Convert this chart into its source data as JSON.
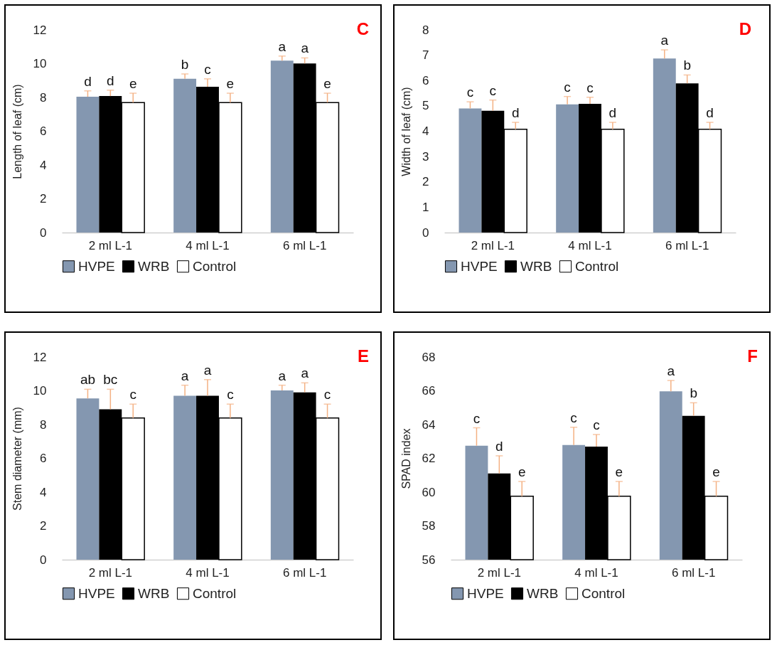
{
  "chart_data": [
    {
      "type": "bar",
      "ylabel": "Length of leaf (cm)",
      "categories": [
        "2 ml L-1",
        "4 ml L-1",
        "6 ml L-1"
      ],
      "ylim": [
        0,
        12
      ],
      "yticks": [
        0,
        2,
        4,
        6,
        8,
        10,
        12
      ],
      "legend": "bottom",
      "annotations": [
        "C"
      ],
      "series": [
        {
          "name": "HVPE",
          "color": "#8497b0",
          "values": [
            8.04,
            9.11,
            10.18
          ],
          "errors": [
            [
              8.04,
              8.39
            ],
            [
              9.11,
              9.39
            ],
            [
              10.18,
              10.45
            ]
          ],
          "value_labels": [
            "d",
            "b",
            "a"
          ]
        },
        {
          "name": "WRB",
          "color": "#000000",
          "values": [
            8.08,
            8.63,
            10.01
          ],
          "errors": [
            [
              8.08,
              8.43
            ],
            [
              8.63,
              9.1
            ],
            [
              10.01,
              10.34
            ]
          ],
          "value_labels": [
            "d",
            "c",
            "a"
          ]
        },
        {
          "name": "Control",
          "color": "#ffffff",
          "values": [
            7.7,
            7.7,
            7.7
          ],
          "errors": [
            [
              7.7,
              8.25
            ],
            [
              7.7,
              8.25
            ],
            [
              7.7,
              8.25
            ]
          ],
          "value_labels": [
            "e",
            "e",
            "e"
          ]
        }
      ]
    },
    {
      "type": "bar",
      "ylabel": "Width of leaf (cm)",
      "categories": [
        "2 ml L-1",
        "4 ml L-1",
        "6 ml L-1"
      ],
      "ylim": [
        0,
        8
      ],
      "yticks": [
        0,
        1,
        2,
        3,
        4,
        5,
        6,
        7,
        8
      ],
      "legend": "bottom",
      "annotations": [
        "D"
      ],
      "series": [
        {
          "name": "HVPE",
          "color": "#8497b0",
          "values": [
            4.9,
            5.06,
            6.87
          ],
          "errors": [
            [
              4.9,
              5.16
            ],
            [
              5.06,
              5.37
            ],
            [
              6.87,
              7.21
            ]
          ],
          "value_labels": [
            "c",
            "c",
            "a"
          ]
        },
        {
          "name": "WRB",
          "color": "#000000",
          "values": [
            4.81,
            5.08,
            5.89
          ],
          "errors": [
            [
              4.81,
              5.23
            ],
            [
              5.08,
              5.34
            ],
            [
              5.89,
              6.22
            ]
          ],
          "value_labels": [
            "c",
            "c",
            "b"
          ]
        },
        {
          "name": "Control",
          "color": "#ffffff",
          "values": [
            4.08,
            4.08,
            4.08
          ],
          "errors": [
            [
              4.08,
              4.35
            ],
            [
              4.08,
              4.35
            ],
            [
              4.08,
              4.35
            ]
          ],
          "value_labels": [
            "d",
            "d",
            "d"
          ]
        }
      ]
    },
    {
      "type": "bar",
      "ylabel": "Stem diameter (mm)",
      "categories": [
        "2 ml L-1",
        "4 ml L-1",
        "6 ml L-1"
      ],
      "ylim": [
        0,
        12
      ],
      "yticks": [
        0,
        2,
        4,
        6,
        8,
        10,
        12
      ],
      "legend": "bottom",
      "annotations": [
        "E"
      ],
      "series": [
        {
          "name": "HVPE",
          "color": "#8497b0",
          "values": [
            9.55,
            9.71,
            10.02
          ],
          "errors": [
            [
              9.55,
              10.09
            ],
            [
              9.71,
              10.33
            ],
            [
              10.02,
              10.33
            ]
          ],
          "value_labels": [
            "ab",
            "a",
            "a"
          ]
        },
        {
          "name": "WRB",
          "color": "#000000",
          "values": [
            8.91,
            9.71,
            9.91
          ],
          "errors": [
            [
              8.91,
              10.09
            ],
            [
              9.71,
              10.66
            ],
            [
              9.91,
              10.47
            ]
          ],
          "value_labels": [
            "bc",
            "a",
            "a"
          ]
        },
        {
          "name": "Control",
          "color": "#ffffff",
          "values": [
            8.39,
            8.39,
            8.39
          ],
          "errors": [
            [
              8.39,
              9.21
            ],
            [
              8.39,
              9.21
            ],
            [
              8.39,
              9.21
            ]
          ],
          "value_labels": [
            "c",
            "c",
            "c"
          ]
        }
      ]
    },
    {
      "type": "bar",
      "ylabel": "SPAD index",
      "categories": [
        "2 ml L-1",
        "4 ml L-1",
        "6 ml L-1"
      ],
      "ylim": [
        56,
        68
      ],
      "yticks": [
        56,
        58,
        60,
        62,
        64,
        66,
        68
      ],
      "legend": "bottom",
      "annotations": [
        "F"
      ],
      "series": [
        {
          "name": "HVPE",
          "color": "#8497b0",
          "values": [
            62.75,
            62.79,
            65.97
          ],
          "errors": [
            [
              62.75,
              63.81
            ],
            [
              62.79,
              63.84
            ],
            [
              65.97,
              66.61
            ]
          ],
          "value_labels": [
            "c",
            "c",
            "a"
          ]
        },
        {
          "name": "WRB",
          "color": "#000000",
          "values": [
            61.11,
            62.7,
            64.52
          ],
          "errors": [
            [
              61.11,
              62.15
            ],
            [
              62.7,
              63.41
            ],
            [
              64.52,
              65.29
            ]
          ],
          "value_labels": [
            "d",
            "c",
            "b"
          ]
        },
        {
          "name": "Control",
          "color": "#ffffff",
          "values": [
            59.76,
            59.76,
            59.76
          ],
          "errors": [
            [
              59.76,
              60.63
            ],
            [
              59.76,
              60.63
            ],
            [
              59.76,
              60.63
            ]
          ],
          "value_labels": [
            "e",
            "e",
            "e"
          ]
        }
      ]
    }
  ]
}
